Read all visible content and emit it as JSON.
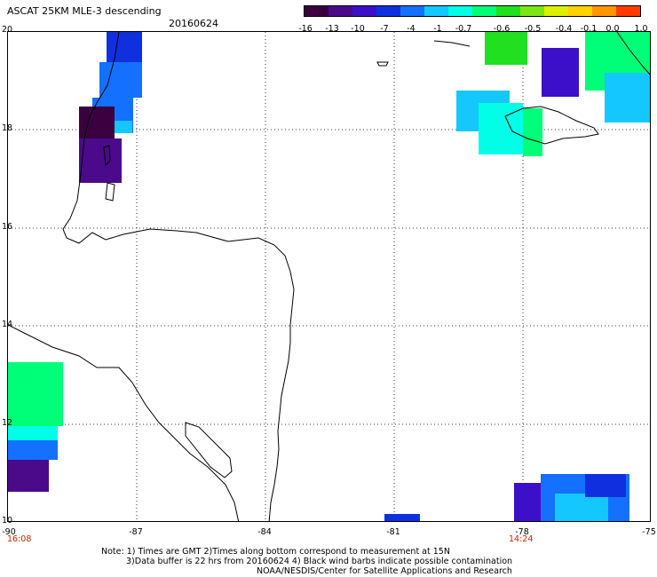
{
  "header": {
    "title": "ASCAT 25KM MLE-3 descending",
    "date": "20160624"
  },
  "colorbar": {
    "colors": [
      "#3a0040",
      "#4a0a8a",
      "#3c10c8",
      "#1030e0",
      "#1470ff",
      "#14c8ff",
      "#00ffe6",
      "#00ff78",
      "#20e020",
      "#7ce614",
      "#dcf000",
      "#ffd200",
      "#ff9600",
      "#ff3c00"
    ],
    "labels": [
      "-16",
      "-13",
      "-10",
      "-7",
      "-4",
      "-1",
      "-0.7",
      "-0.6",
      "-0.5",
      "-0.4",
      "-0.1",
      "0.0",
      "1.0"
    ]
  },
  "axes": {
    "lat_labels": [
      "20",
      "18",
      "16",
      "14",
      "12",
      "10"
    ],
    "lon_labels": [
      "-90",
      "-87",
      "-84",
      "-81",
      "-78",
      "-75"
    ],
    "times": [
      "16:08",
      "14:24"
    ]
  },
  "notes": [
    "Note: 1) Times are GMT 2)Times along bottom correspond to measurement at 15N",
    "3)Data buffer is 22 hrs from 20160624 4) Black wind barbs indicate possible contamination",
    "NOAA/NESDIS/Center for Satellite Applications and Research"
  ]
}
